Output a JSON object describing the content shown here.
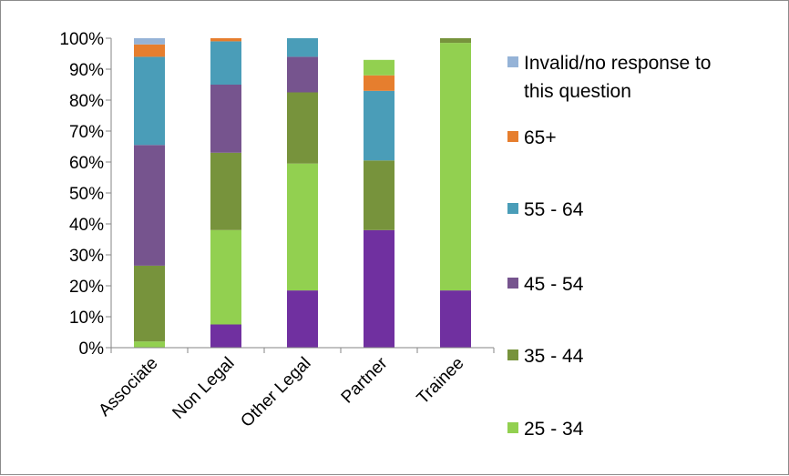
{
  "chart_data": {
    "type": "bar",
    "stacked": true,
    "percent": true,
    "title": "",
    "xlabel": "",
    "ylabel": "",
    "ylim": [
      0,
      100
    ],
    "yticks": [
      "0%",
      "10%",
      "20%",
      "30%",
      "40%",
      "50%",
      "60%",
      "70%",
      "80%",
      "90%",
      "100%"
    ],
    "grid": false,
    "legend_position": "right",
    "categories": [
      "Associate",
      "Non Legal",
      "Other Legal",
      "Partner",
      "Trainee"
    ],
    "series": [
      {
        "key": "s2534_dark",
        "name": "",
        "color": "#7030A0",
        "values": [
          0,
          7.5,
          18.5,
          38,
          18.5
        ]
      },
      {
        "key": "s2534",
        "name": "25 - 34",
        "color": "#92D050",
        "values": [
          2,
          30.5,
          41,
          0,
          80
        ]
      },
      {
        "key": "s3544",
        "name": "35 - 44",
        "color": "#77933C",
        "values": [
          24.5,
          25,
          23,
          22.5,
          1.5
        ]
      },
      {
        "key": "s4554",
        "name": "45 - 54",
        "color": "#76548E",
        "values": [
          39,
          22,
          11.5,
          0,
          0
        ]
      },
      {
        "key": "s5564",
        "name": "55 - 64",
        "color": "#4A9DB8",
        "values": [
          28.5,
          14,
          6,
          22.5,
          0
        ]
      },
      {
        "key": "s65",
        "name": "65+",
        "color": "#E67E2E",
        "values": [
          4,
          1,
          0,
          5,
          0
        ]
      },
      {
        "key": "sinvalid",
        "name": "Invalid/no response to this question",
        "color": "#95B3D7",
        "values": [
          2,
          0,
          0,
          0,
          0
        ]
      },
      {
        "key": "s2534_top",
        "name": "",
        "color": "#92D050",
        "values": [
          0,
          0,
          0,
          5,
          0
        ]
      }
    ],
    "legend": [
      {
        "series": "sinvalid",
        "lines": [
          "Invalid/no response to",
          "this question"
        ]
      },
      {
        "series": "s65",
        "lines": [
          "65+"
        ]
      },
      {
        "series": "s5564",
        "lines": [
          "55 - 64"
        ]
      },
      {
        "series": "s4554",
        "lines": [
          "45 - 54"
        ]
      },
      {
        "series": "s3544",
        "lines": [
          "35 - 44"
        ]
      },
      {
        "series": "s2534",
        "lines": [
          "25 - 34"
        ]
      }
    ]
  }
}
